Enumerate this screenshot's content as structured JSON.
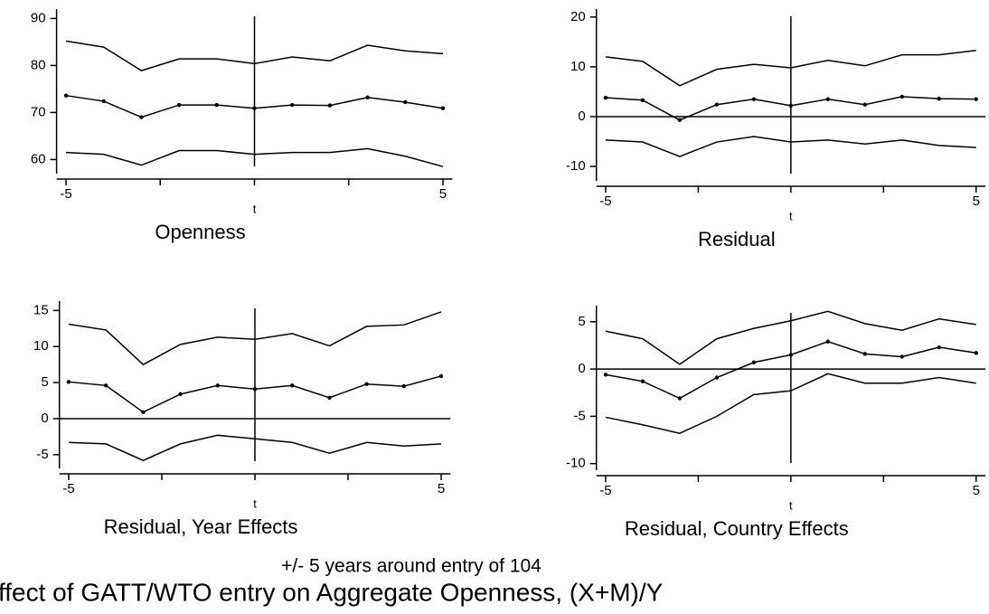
{
  "chart_data": [
    {
      "type": "line",
      "title": "Openness",
      "xlabel": "t",
      "x": [
        -5,
        -4,
        -3,
        -2,
        -1,
        0,
        1,
        2,
        3,
        4,
        5
      ],
      "xlim": [
        -5.25,
        5.25
      ],
      "xticks": [
        -5,
        5
      ],
      "minor_xticks": [
        -2.5,
        0,
        2.5
      ],
      "ylim": [
        57,
        92
      ],
      "yticks": [
        60,
        70,
        80,
        90
      ],
      "vline": 0,
      "series": [
        {
          "color": "#000000",
          "values": [
            85.2,
            83.9,
            78.9,
            81.4,
            81.4,
            80.4,
            81.8,
            81.0,
            84.3,
            83.1,
            82.5
          ]
        },
        {
          "color": "#000000",
          "marker": true,
          "values": [
            73.6,
            72.4,
            69.0,
            71.6,
            71.6,
            70.9,
            71.6,
            71.5,
            73.2,
            72.2,
            70.9
          ]
        },
        {
          "color": "#000000",
          "values": [
            61.5,
            61.1,
            58.8,
            61.9,
            61.9,
            61.1,
            61.5,
            61.5,
            62.3,
            60.7,
            58.5
          ]
        }
      ]
    },
    {
      "type": "line",
      "title": "Residual",
      "xlabel": "t",
      "x": [
        -5,
        -4,
        -3,
        -2,
        -1,
        0,
        1,
        2,
        3,
        4,
        5
      ],
      "xlim": [
        -5.25,
        5.25
      ],
      "xticks": [
        -5,
        5
      ],
      "minor_xticks": [
        -2.5,
        0,
        2.5
      ],
      "ylim": [
        -12.9,
        21.6
      ],
      "yticks": [
        -10,
        0,
        10,
        20
      ],
      "vline": 0,
      "hline": 0,
      "series": [
        {
          "color": "#000000",
          "values": [
            12.0,
            11.1,
            6.2,
            9.5,
            10.5,
            9.8,
            11.3,
            10.2,
            12.4,
            12.4,
            13.3
          ]
        },
        {
          "color": "#000000",
          "marker": true,
          "values": [
            3.8,
            3.3,
            -0.7,
            2.4,
            3.5,
            2.2,
            3.5,
            2.4,
            4.0,
            3.6,
            3.5
          ]
        },
        {
          "color": "#000000",
          "values": [
            -4.7,
            -5.1,
            -8.0,
            -5.1,
            -4.0,
            -5.1,
            -4.7,
            -5.5,
            -4.7,
            -5.8,
            -6.2
          ]
        }
      ]
    },
    {
      "type": "line",
      "title": "Residual, Year Effects",
      "xlabel": "t",
      "x": [
        -5,
        -4,
        -3,
        -2,
        -1,
        0,
        1,
        2,
        3,
        4,
        5
      ],
      "xlim": [
        -5.25,
        5.25
      ],
      "xticks": [
        -5,
        5
      ],
      "minor_xticks": [
        -2.5,
        0,
        2.5
      ],
      "ylim": [
        -6.9,
        16.3
      ],
      "yticks": [
        -5,
        0,
        5,
        10,
        15
      ],
      "vline": 0,
      "hline": 0,
      "series": [
        {
          "color": "#000000",
          "values": [
            13.1,
            12.3,
            7.5,
            10.3,
            11.3,
            11.0,
            11.8,
            10.1,
            12.8,
            13.0,
            14.8
          ]
        },
        {
          "color": "#000000",
          "marker": true,
          "values": [
            5.1,
            4.6,
            0.9,
            3.4,
            4.6,
            4.1,
            4.6,
            2.9,
            4.8,
            4.5,
            5.9
          ]
        },
        {
          "color": "#000000",
          "values": [
            -3.3,
            -3.5,
            -5.8,
            -3.5,
            -2.3,
            -2.8,
            -3.3,
            -4.8,
            -3.3,
            -3.8,
            -3.5
          ]
        }
      ]
    },
    {
      "type": "line",
      "title": "Residual, Country Effects",
      "xlabel": "t",
      "x": [
        -5,
        -4,
        -3,
        -2,
        -1,
        0,
        1,
        2,
        3,
        4,
        5
      ],
      "xlim": [
        -5.25,
        5.25
      ],
      "xticks": [
        -5,
        5
      ],
      "minor_xticks": [
        -2.5,
        0,
        2.5
      ],
      "ylim": [
        -10.7,
        6.7
      ],
      "yticks": [
        -10,
        -5,
        0,
        5
      ],
      "vline": 0,
      "hline": 0,
      "series": [
        {
          "color": "#000000",
          "values": [
            4.0,
            3.2,
            0.5,
            3.2,
            4.3,
            5.1,
            6.1,
            4.8,
            4.1,
            5.3,
            4.7
          ]
        },
        {
          "color": "#000000",
          "marker": true,
          "values": [
            -0.6,
            -1.3,
            -3.1,
            -0.9,
            0.7,
            1.5,
            2.9,
            1.6,
            1.3,
            2.3,
            1.7
          ]
        },
        {
          "color": "#000000",
          "values": [
            -5.1,
            -5.9,
            -6.8,
            -5.0,
            -2.7,
            -2.3,
            -0.5,
            -1.5,
            -1.5,
            -0.9,
            -1.5
          ]
        }
      ]
    }
  ],
  "figure": {
    "subtitle": "+/- 5 years around entry of 104",
    "title": "ffect of GATT/WTO entry on Aggregate Openness, (X+M)/Y"
  }
}
